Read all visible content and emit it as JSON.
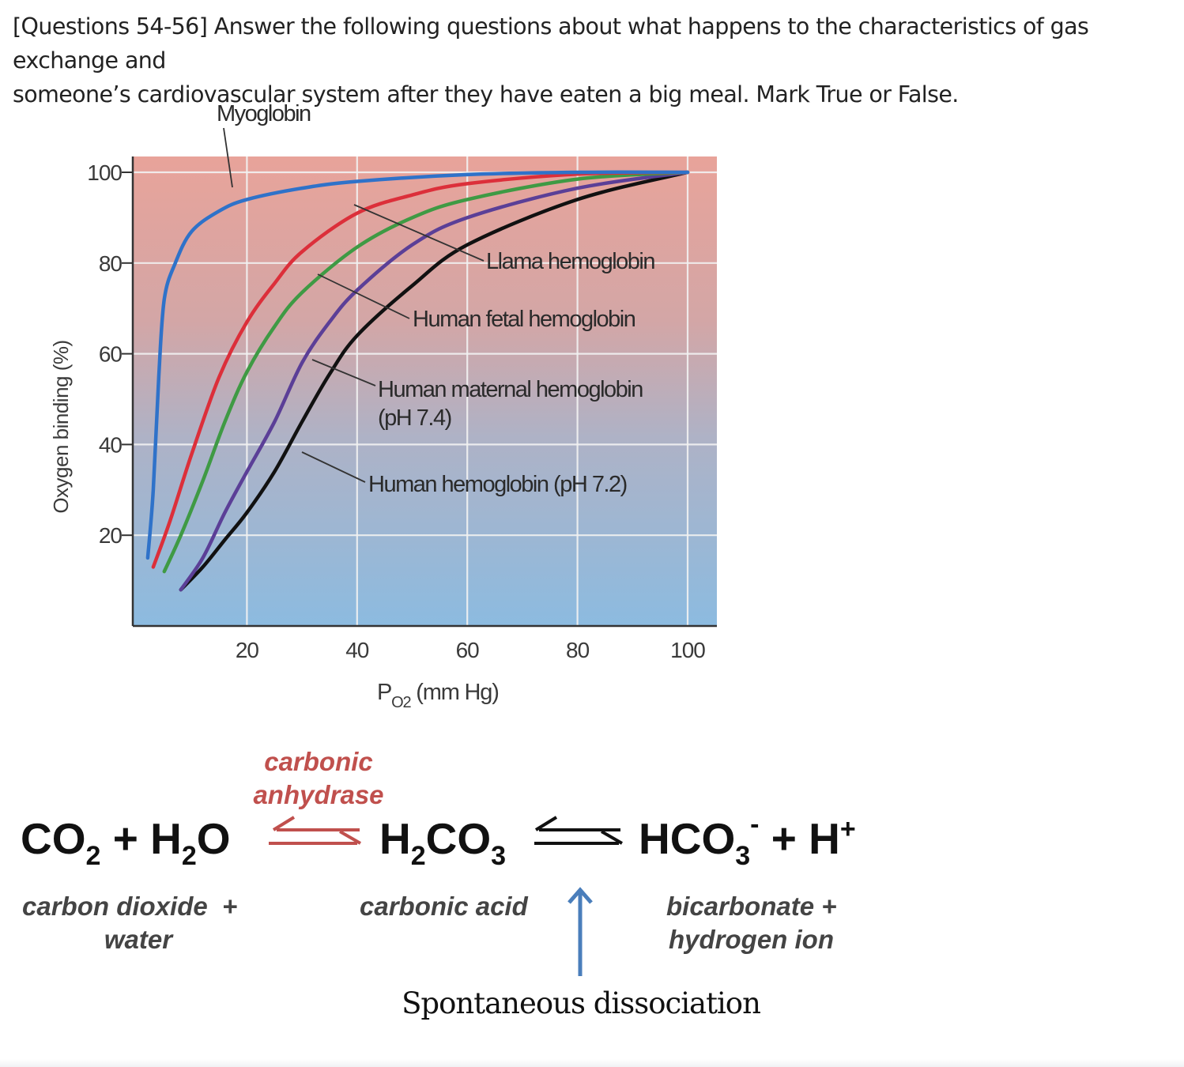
{
  "question": {
    "line1": "[Questions 54-56] Answer the following questions about what happens to the characteristics of gas exchange and",
    "line2": "someone’s cardiovascular system after they have eaten a big meal. Mark True or False."
  },
  "chart_data": {
    "type": "line",
    "xlabel_main": "P",
    "xlabel_sub": "O2",
    "xlabel_rest": " (mm Hg)",
    "ylabel": "Oxygen binding (%)",
    "xlim": [
      0,
      100
    ],
    "ylim": [
      0,
      100
    ],
    "x_ticks": [
      "20",
      "40",
      "60",
      "80",
      "100"
    ],
    "y_ticks": [
      "20",
      "40",
      "60",
      "80",
      "100"
    ],
    "grid": true,
    "background": "red-top to blue-bottom gradient",
    "series": [
      {
        "name": "Myoglobin",
        "color": "#2f72c9",
        "points": [
          [
            2,
            15
          ],
          [
            3,
            30
          ],
          [
            4,
            55
          ],
          [
            5,
            72
          ],
          [
            7,
            80
          ],
          [
            10,
            87
          ],
          [
            15,
            91.5
          ],
          [
            20,
            94
          ],
          [
            30,
            96.5
          ],
          [
            40,
            98
          ],
          [
            60,
            99.5
          ],
          [
            80,
            100
          ],
          [
            100,
            100
          ]
        ]
      },
      {
        "name": "Llama hemoglobin",
        "color": "#dc2f3a",
        "points": [
          [
            3,
            13
          ],
          [
            6,
            23
          ],
          [
            10,
            38
          ],
          [
            15,
            55
          ],
          [
            20,
            67
          ],
          [
            25,
            75.5
          ],
          [
            30,
            82.5
          ],
          [
            40,
            91
          ],
          [
            50,
            95
          ],
          [
            60,
            97.5
          ],
          [
            80,
            99.6
          ],
          [
            100,
            100
          ]
        ]
      },
      {
        "name": "Human fetal hemoglobin",
        "color": "#3f9a44",
        "points": [
          [
            5,
            12
          ],
          [
            8,
            20
          ],
          [
            12,
            32
          ],
          [
            16,
            45
          ],
          [
            20,
            56
          ],
          [
            25,
            66
          ],
          [
            30,
            73.5
          ],
          [
            40,
            83.5
          ],
          [
            50,
            90
          ],
          [
            60,
            94
          ],
          [
            80,
            98.5
          ],
          [
            100,
            100
          ]
        ]
      },
      {
        "name": "Human maternal hemoglobin (pH 7.4)",
        "color": "#5b3f97",
        "points": [
          [
            8,
            8
          ],
          [
            12,
            15
          ],
          [
            16,
            25
          ],
          [
            20,
            34
          ],
          [
            25,
            45
          ],
          [
            30,
            58
          ],
          [
            35,
            67
          ],
          [
            40,
            74
          ],
          [
            50,
            84
          ],
          [
            60,
            90
          ],
          [
            80,
            96.5
          ],
          [
            100,
            100
          ]
        ]
      },
      {
        "name": "Human hemoglobin (pH 7.2)",
        "color": "#111111",
        "points": [
          [
            8,
            8
          ],
          [
            12,
            13
          ],
          [
            16,
            19
          ],
          [
            20,
            25
          ],
          [
            25,
            34
          ],
          [
            30,
            45
          ],
          [
            35,
            55.5
          ],
          [
            40,
            64
          ],
          [
            50,
            75
          ],
          [
            60,
            84
          ],
          [
            80,
            94
          ],
          [
            100,
            100
          ]
        ]
      }
    ],
    "annotations": [
      {
        "text": "Myoglobin"
      },
      {
        "text": "Llama hemoglobin"
      },
      {
        "text": "Human fetal hemoglobin"
      },
      {
        "text": "Human maternal hemoglobin"
      },
      {
        "text": "(pH 7.4)"
      },
      {
        "text": "Human hemoglobin (pH 7.2)"
      }
    ]
  },
  "equation": {
    "enzyme_line1": "carbonic",
    "enzyme_line2": "anhydrase",
    "reactant_co": "CO",
    "reactant_co_sub": "2",
    "plus_h": " + H",
    "water_sub": "2",
    "water_o": "O",
    "acid_h": "H",
    "acid_h_sub": "2",
    "acid_co": "CO",
    "acid_co_sub": "3",
    "bicarb": "HCO",
    "bicarb_sub": "3",
    "bicarb_sup": "-",
    "plus_hplus": " + H",
    "hplus_sup": "+",
    "label_reactants_1": "carbon dioxide  +",
    "label_reactants_2": "water",
    "label_acid": "carbonic acid",
    "label_products_1": "bicarbonate +",
    "label_products_2": "hydrogen ion",
    "note": "Spontaneous dissociation",
    "enzyme_color": "#c0504d",
    "arrow_up_color": "#4a7ebb"
  }
}
